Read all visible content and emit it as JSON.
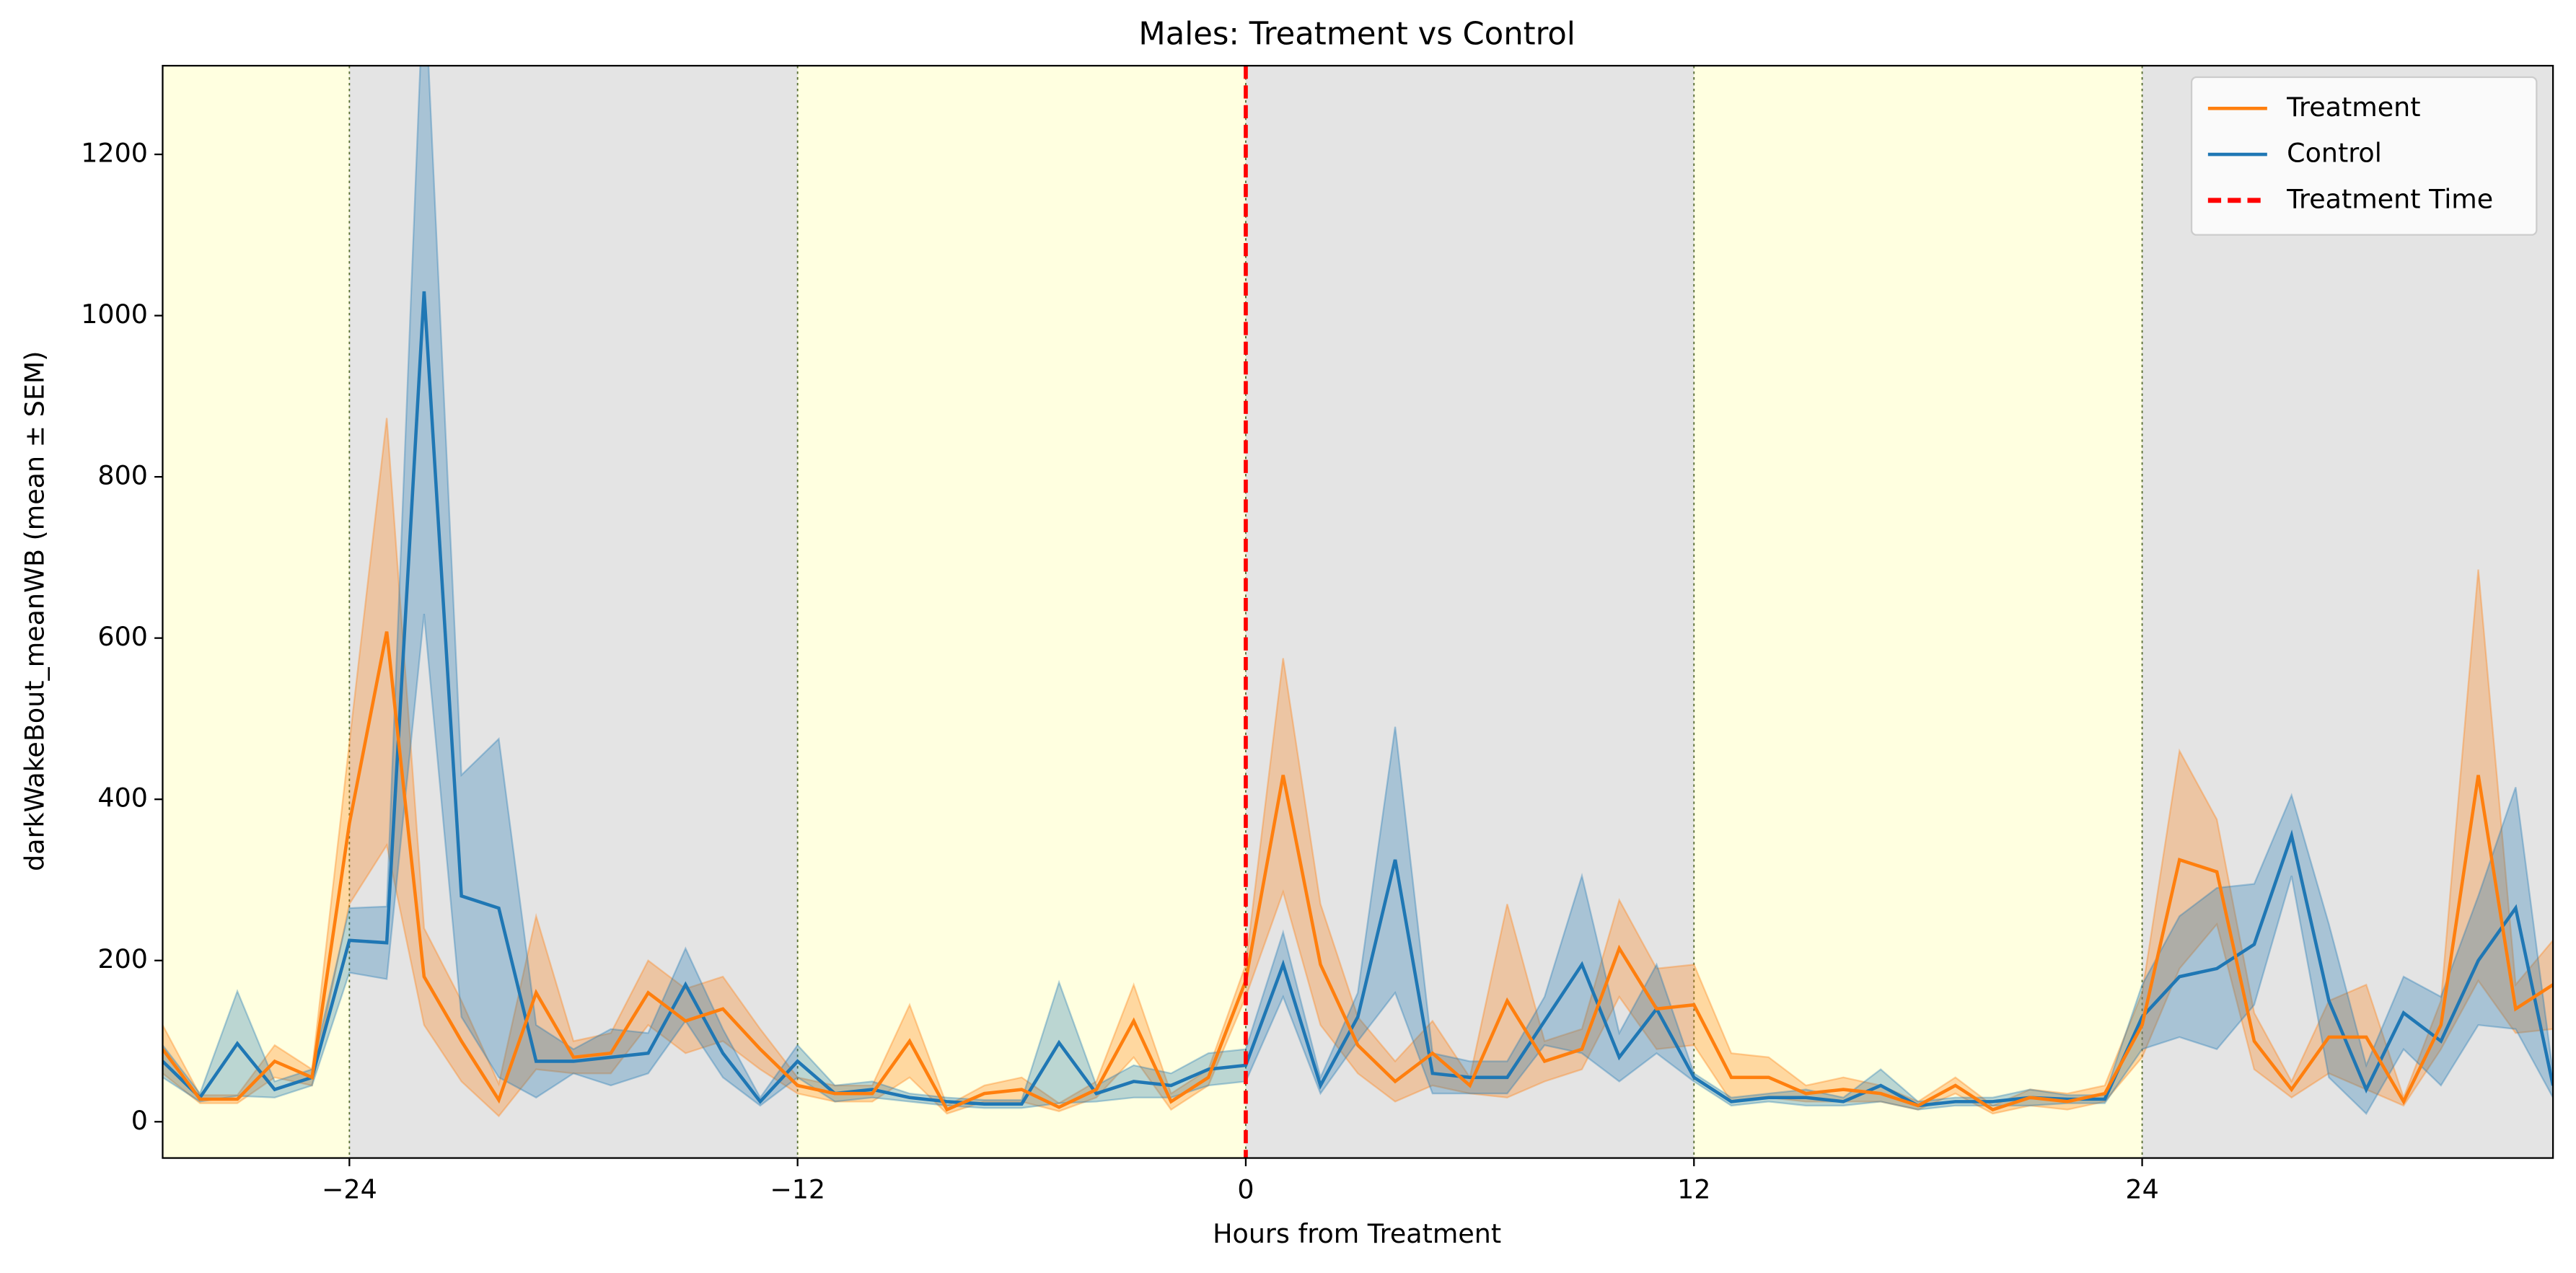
{
  "chart_data": {
    "type": "line",
    "title": "Males: Treatment vs Control",
    "xlabel": "Hours from Treatment",
    "ylabel": "darkWakeBout_meanWB (mean ± SEM)",
    "x": [
      -29,
      -28,
      -27,
      -26,
      -25,
      -24,
      -23,
      -22,
      -21,
      -20,
      -19,
      -18,
      -17,
      -16,
      -15,
      -14,
      -13,
      -12,
      -11,
      -10,
      -9,
      -8,
      -7,
      -6,
      -5,
      -4,
      -3,
      -2,
      -1,
      0,
      1,
      2,
      3,
      4,
      5,
      6,
      7,
      8,
      9,
      10,
      11,
      12,
      13,
      14,
      15,
      16,
      17,
      18,
      19,
      20,
      21,
      22,
      23,
      24,
      25,
      26,
      27,
      28,
      29,
      30,
      31,
      32,
      33,
      34,
      35
    ],
    "series": [
      {
        "name": "Treatment",
        "color": "#ff7f0e",
        "values": [
          90,
          28,
          28,
          75,
          55,
          370,
          608,
          180,
          100,
          27,
          160,
          80,
          85,
          160,
          125,
          140,
          90,
          45,
          35,
          35,
          100,
          15,
          35,
          40,
          18,
          40,
          125,
          25,
          55,
          175,
          430,
          195,
          95,
          50,
          85,
          45,
          150,
          75,
          90,
          215,
          140,
          145,
          55,
          55,
          35,
          40,
          35,
          20,
          45,
          15,
          30,
          25,
          35,
          120,
          325,
          310,
          100,
          40,
          105,
          105,
          25,
          120,
          430,
          140,
          170
        ],
        "sem": [
          30,
          5,
          5,
          20,
          10,
          100,
          265,
          60,
          50,
          20,
          95,
          20,
          25,
          40,
          40,
          40,
          25,
          10,
          10,
          10,
          45,
          5,
          10,
          15,
          5,
          10,
          45,
          10,
          10,
          20,
          145,
          75,
          35,
          25,
          40,
          10,
          120,
          25,
          25,
          60,
          50,
          50,
          30,
          25,
          10,
          15,
          10,
          5,
          10,
          5,
          10,
          10,
          10,
          40,
          135,
          65,
          35,
          10,
          45,
          65,
          5,
          30,
          255,
          30,
          55
        ]
      },
      {
        "name": "Control",
        "color": "#1f77b4",
        "values": [
          75,
          30,
          97,
          40,
          55,
          225,
          222,
          1030,
          280,
          265,
          75,
          75,
          80,
          85,
          170,
          85,
          25,
          75,
          35,
          40,
          30,
          25,
          22,
          22,
          98,
          35,
          50,
          45,
          65,
          70,
          195,
          45,
          130,
          325,
          60,
          55,
          55,
          125,
          195,
          80,
          140,
          55,
          25,
          30,
          30,
          25,
          45,
          20,
          25,
          25,
          30,
          28,
          28,
          130,
          180,
          190,
          220,
          355,
          150,
          40,
          135,
          100,
          200,
          265,
          45
        ],
        "sem": [
          20,
          5,
          65,
          10,
          10,
          40,
          45,
          400,
          150,
          210,
          45,
          15,
          35,
          25,
          45,
          30,
          5,
          20,
          10,
          10,
          5,
          5,
          5,
          5,
          75,
          10,
          20,
          15,
          20,
          20,
          40,
          10,
          30,
          165,
          25,
          20,
          20,
          30,
          110,
          30,
          55,
          5,
          5,
          5,
          10,
          5,
          20,
          5,
          5,
          5,
          10,
          5,
          5,
          40,
          75,
          100,
          75,
          50,
          95,
          30,
          45,
          55,
          80,
          150,
          15
        ]
      }
    ],
    "reference_lines": [
      {
        "name": "Treatment Time",
        "x": 0,
        "color": "#ff0000"
      }
    ],
    "light_periods": [
      [
        -29,
        -24
      ],
      [
        -12,
        0
      ],
      [
        12,
        24
      ]
    ],
    "dark_periods": [
      [
        -24,
        -12
      ],
      [
        0,
        12
      ],
      [
        24,
        35
      ]
    ],
    "light_color": "#ffffe0",
    "dark_color": "#e4e4e4",
    "xlim": [
      -29,
      35
    ],
    "ylim": [
      -45,
      1310
    ],
    "xticks": [
      {
        "value": -24,
        "label": "−24"
      },
      {
        "value": -12,
        "label": "−12"
      },
      0,
      12,
      24
    ],
    "yticks": [
      0,
      200,
      400,
      600,
      800,
      1000,
      1200
    ],
    "legend": "upper right"
  }
}
